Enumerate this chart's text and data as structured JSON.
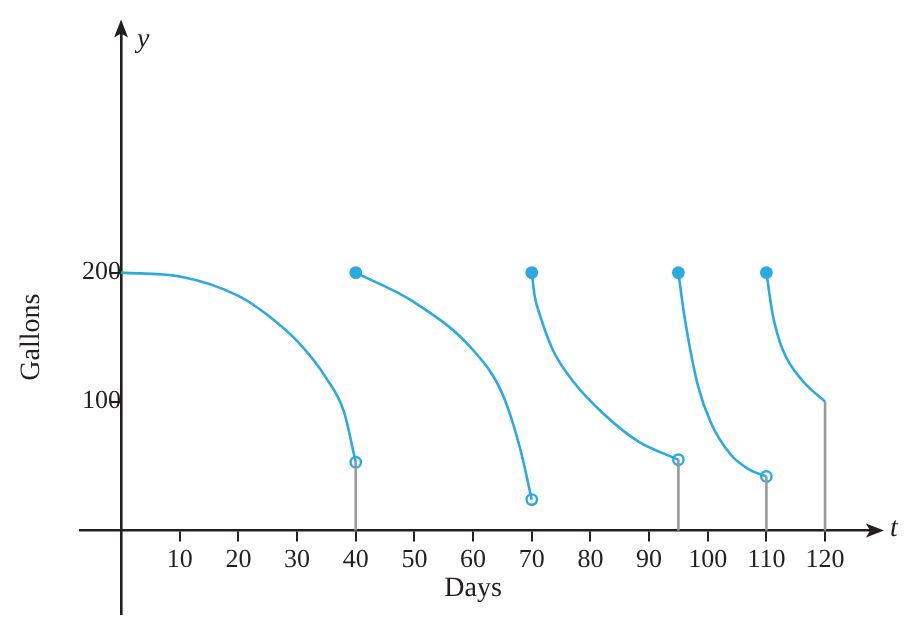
{
  "chart_data": {
    "type": "line",
    "xlabel": "Days",
    "ylabel": "Gallons",
    "annotations": [
      "y",
      "t"
    ],
    "xlim": [
      -7,
      128
    ],
    "ylim": [
      -65,
      390
    ],
    "xticks": [
      10,
      20,
      30,
      40,
      50,
      60,
      70,
      80,
      90,
      100,
      110,
      120
    ],
    "yticks": [
      100,
      200
    ],
    "grid": false,
    "legend": false,
    "line_style": "solid",
    "series": [
      {
        "marker": "none",
        "color": "#29abe2",
        "x": [
          0,
          10,
          20,
          25,
          30,
          35,
          38,
          40
        ],
        "values": [
          200,
          197,
          182,
          167,
          147,
          118,
          92,
          53
        ]
      },
      {
        "marker": "none",
        "color": "#29abe2",
        "x": [
          40,
          50,
          60,
          65,
          68,
          70
        ],
        "values": [
          200,
          177,
          140,
          106,
          64,
          24
        ]
      },
      {
        "marker": "none",
        "color": "#29abe2",
        "x": [
          70,
          70.5,
          71.4,
          73.6,
          77,
          82.6,
          88.2,
          95
        ],
        "values": [
          200,
          182,
          167,
          140,
          116,
          89,
          69,
          55
        ]
      },
      {
        "marker": "none",
        "color": "#29abe2",
        "x": [
          95,
          96,
          98.3,
          100.5,
          103.9,
          107.2,
          110
        ],
        "values": [
          200,
          167,
          113,
          84,
          59,
          47,
          42
        ]
      },
      {
        "marker": "none",
        "color": "#29abe2",
        "x": [
          110,
          111.1,
          112.8,
          116.2,
          120
        ],
        "values": [
          200,
          167,
          140,
          116,
          100
        ]
      },
      {
        "type": "line",
        "marker": "none",
        "color": "#999999",
        "x": [
          40,
          40
        ],
        "values": [
          0,
          53
        ]
      },
      {
        "type": "line",
        "marker": "none",
        "color": "#999999",
        "x": [
          95,
          95
        ],
        "values": [
          0,
          55
        ]
      },
      {
        "type": "line",
        "marker": "none",
        "color": "#999999",
        "x": [
          110,
          110
        ],
        "values": [
          0,
          42
        ]
      },
      {
        "type": "line",
        "marker": "none",
        "color": "#999999",
        "x": [
          120,
          120
        ],
        "values": [
          0,
          100
        ]
      },
      {
        "type": "scatter",
        "marker": "circle",
        "color": "#29abe2",
        "x": [
          40,
          70,
          95,
          110
        ],
        "values": [
          200,
          200,
          200,
          200
        ]
      },
      {
        "type": "scatter",
        "marker": "circle",
        "color": "#29abe2",
        "colors": [
          "#ffffff",
          "#ffffff",
          "#ffffff",
          "#ffffff"
        ],
        "x": [
          40,
          70,
          95,
          110
        ],
        "values": [
          53,
          24,
          55,
          42
        ]
      }
    ]
  }
}
